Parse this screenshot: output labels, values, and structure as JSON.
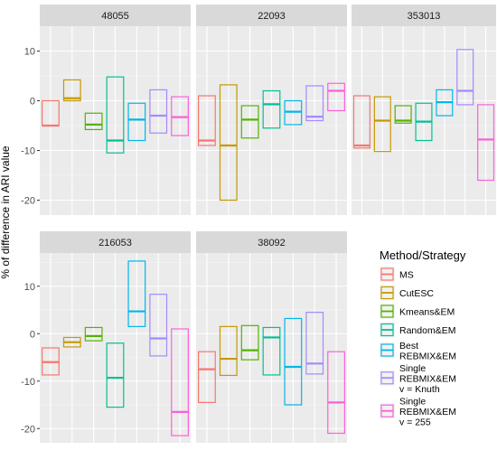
{
  "chart_data": {
    "type": "boxplot",
    "ylabel": "% of difference in ARI value",
    "xlabel": "",
    "ylim": [
      -23,
      15
    ],
    "yticks": [
      -20,
      -10,
      0,
      10
    ],
    "legend": {
      "title": "Method/Strategy",
      "placement": "right",
      "entries": [
        {
          "label": [
            "MS"
          ],
          "color": "#F8766D"
        },
        {
          "label": [
            "CutESC"
          ],
          "color": "#C49A00"
        },
        {
          "label": [
            "Kmeans&EM"
          ],
          "color": "#53B400"
        },
        {
          "label": [
            "Random&EM"
          ],
          "color": "#00C094"
        },
        {
          "label": [
            "Best",
            "REBMIX&EM"
          ],
          "color": "#00B6EB"
        },
        {
          "label": [
            "Single",
            "REBMIX&EM",
            "v = Knuth"
          ],
          "color": "#A58AFF"
        },
        {
          "label": [
            "Single",
            "REBMIX&EM",
            "v = 255"
          ],
          "color": "#FB61D7"
        }
      ]
    },
    "panels": [
      {
        "title": "48055",
        "ylim": [
          -23,
          15
        ],
        "boxes": [
          {
            "q1": -5.0,
            "median": -5.0,
            "q3": 0.0
          },
          {
            "q1": 0.0,
            "median": 0.5,
            "q3": 4.2
          },
          {
            "q1": -5.8,
            "median": -4.8,
            "q3": -2.5
          },
          {
            "q1": -10.5,
            "median": -8.0,
            "q3": 4.8
          },
          {
            "q1": -8.0,
            "median": -3.8,
            "q3": -0.5
          },
          {
            "q1": -6.5,
            "median": -3.0,
            "q3": 2.2
          },
          {
            "q1": -7.0,
            "median": -3.3,
            "q3": 0.8
          }
        ]
      },
      {
        "title": "22093",
        "ylim": [
          -23,
          15
        ],
        "boxes": [
          {
            "q1": -9.0,
            "median": -8.0,
            "q3": 1.0
          },
          {
            "q1": -20.0,
            "median": -9.0,
            "q3": 3.2
          },
          {
            "q1": -7.5,
            "median": -3.8,
            "q3": -1.0
          },
          {
            "q1": -5.5,
            "median": -0.7,
            "q3": 2.0
          },
          {
            "q1": -4.8,
            "median": -2.2,
            "q3": 0.0
          },
          {
            "q1": -4.0,
            "median": -3.2,
            "q3": 3.0
          },
          {
            "q1": -2.0,
            "median": 2.0,
            "q3": 3.5
          }
        ]
      },
      {
        "title": "353013",
        "ylim": [
          -23,
          15
        ],
        "boxes": [
          {
            "q1": -9.5,
            "median": -9.0,
            "q3": 1.0
          },
          {
            "q1": -10.2,
            "median": -4.0,
            "q3": 0.8
          },
          {
            "q1": -4.5,
            "median": -4.0,
            "q3": -1.0
          },
          {
            "q1": -8.0,
            "median": -4.2,
            "q3": -0.5
          },
          {
            "q1": -3.0,
            "median": -0.3,
            "q3": 2.2
          },
          {
            "q1": -0.8,
            "median": 2.0,
            "q3": 10.3
          },
          {
            "q1": -16.0,
            "median": -7.8,
            "q3": -0.8
          }
        ]
      },
      {
        "title": "216053",
        "ylim": [
          -23,
          17
        ],
        "boxes": [
          {
            "q1": -8.7,
            "median": -6.0,
            "q3": -3.0
          },
          {
            "q1": -2.8,
            "median": -1.8,
            "q3": -0.8
          },
          {
            "q1": -1.5,
            "median": -0.5,
            "q3": 1.3
          },
          {
            "q1": -15.5,
            "median": -9.3,
            "q3": -2.0
          },
          {
            "q1": 1.5,
            "median": 4.7,
            "q3": 15.3
          },
          {
            "q1": -4.7,
            "median": -1.0,
            "q3": 8.3
          },
          {
            "q1": -21.5,
            "median": -16.5,
            "q3": 1.0
          }
        ]
      },
      {
        "title": "38092",
        "ylim": [
          -23,
          17
        ],
        "boxes": [
          {
            "q1": -14.5,
            "median": -7.5,
            "q3": -3.8
          },
          {
            "q1": -8.8,
            "median": -5.3,
            "q3": 1.5
          },
          {
            "q1": -5.5,
            "median": -3.5,
            "q3": 1.7
          },
          {
            "q1": -8.7,
            "median": -0.8,
            "q3": 1.3
          },
          {
            "q1": -15.0,
            "median": -7.0,
            "q3": 3.2
          },
          {
            "q1": -8.5,
            "median": -6.3,
            "q3": 4.5
          },
          {
            "q1": -21.0,
            "median": -14.5,
            "q3": -3.8
          }
        ]
      }
    ]
  }
}
